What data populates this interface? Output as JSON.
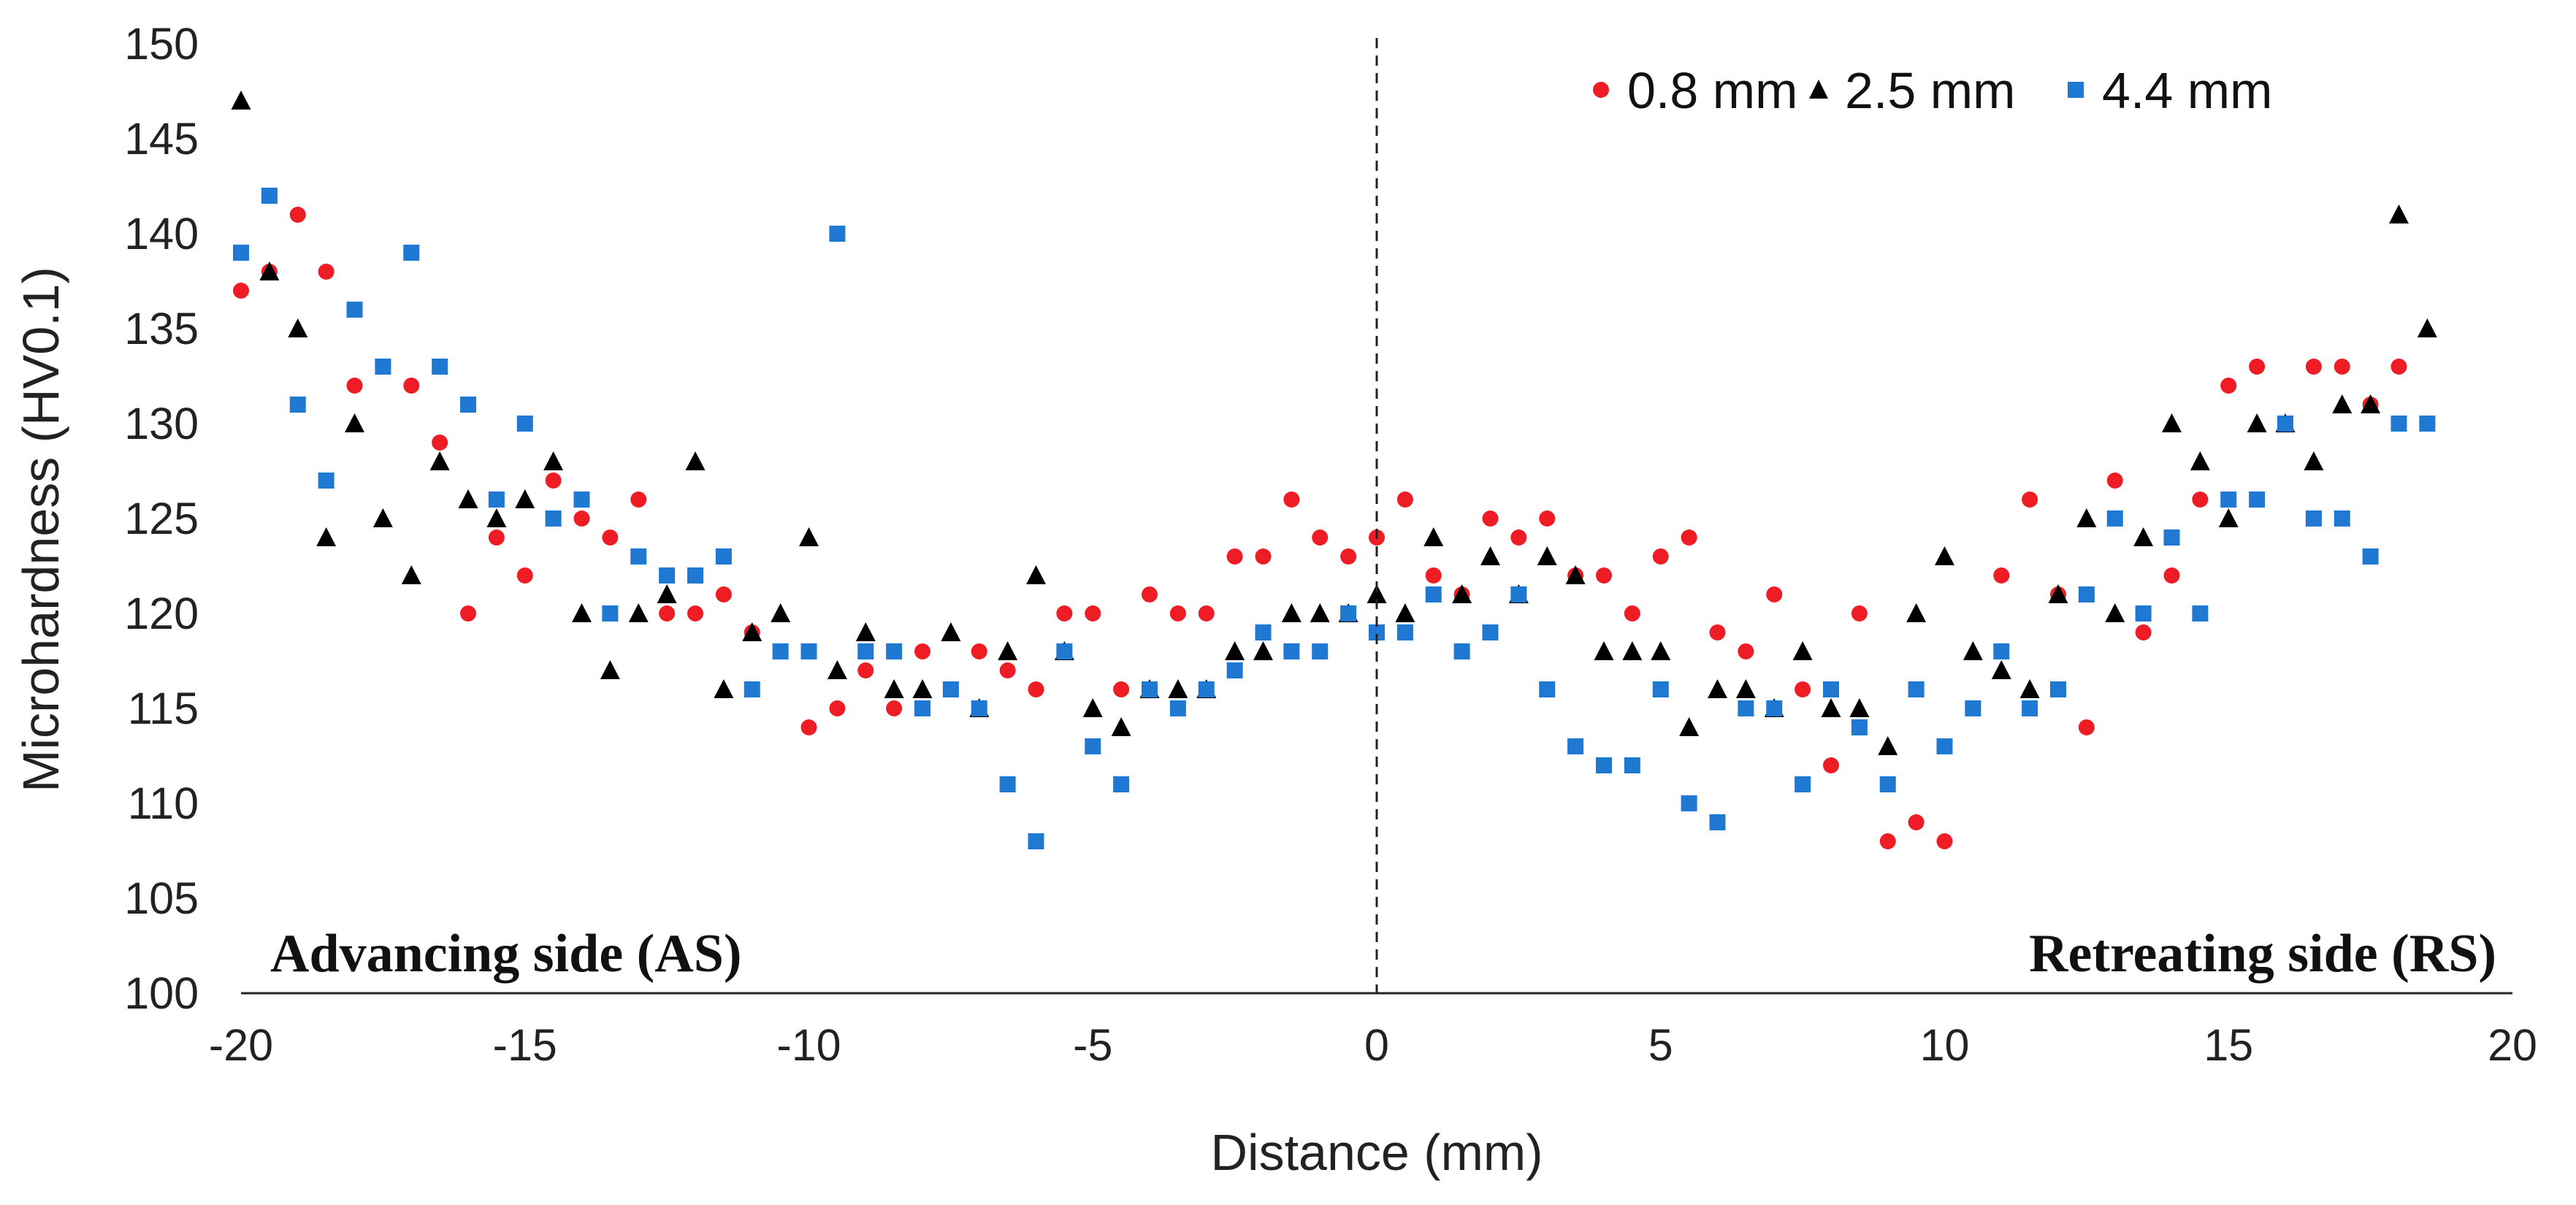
{
  "chart_data": {
    "type": "scatter",
    "xlabel": "Distance (mm)",
    "ylabel": "Microhardness (HV0.1)",
    "xlim": [
      -20,
      20
    ],
    "ylim": [
      100,
      150
    ],
    "xticks": [
      -20,
      -15,
      -10,
      -5,
      0,
      5,
      10,
      15,
      20
    ],
    "yticks": [
      100,
      105,
      110,
      115,
      120,
      125,
      130,
      135,
      140,
      145,
      150
    ],
    "grid": false,
    "legend_position": "top-right",
    "vertical_reference_line": 0,
    "annotations": {
      "left": "Advancing side (AS)",
      "right": "Retreating side (RS)"
    },
    "series": [
      {
        "name": "0.8 mm",
        "marker": "circle",
        "color": "#ee1c25",
        "points": [
          [
            -20,
            137
          ],
          [
            -19.5,
            138
          ],
          [
            -19,
            141
          ],
          [
            -18.5,
            138
          ],
          [
            -18,
            132
          ],
          [
            -17.5,
            133
          ],
          [
            -17,
            132
          ],
          [
            -16.5,
            129
          ],
          [
            -16,
            120
          ],
          [
            -15.5,
            124
          ],
          [
            -15,
            122
          ],
          [
            -14.5,
            127
          ],
          [
            -14,
            125
          ],
          [
            -13.5,
            124
          ],
          [
            -13,
            126
          ],
          [
            -12.5,
            120
          ],
          [
            -12,
            120
          ],
          [
            -11.5,
            121
          ],
          [
            -11,
            119
          ],
          [
            -10.5,
            118
          ],
          [
            -10,
            114
          ],
          [
            -9.5,
            115
          ],
          [
            -9,
            117
          ],
          [
            -8.5,
            115
          ],
          [
            -8,
            118
          ],
          [
            -7.5,
            116
          ],
          [
            -7,
            118
          ],
          [
            -6.5,
            117
          ],
          [
            -6,
            116
          ],
          [
            -5.5,
            120
          ],
          [
            -5,
            120
          ],
          [
            -4.5,
            116
          ],
          [
            -4,
            121
          ],
          [
            -3.5,
            120
          ],
          [
            -3,
            120
          ],
          [
            -2.5,
            123
          ],
          [
            -2,
            123
          ],
          [
            -1.5,
            126
          ],
          [
            -1,
            124
          ],
          [
            -0.5,
            123
          ],
          [
            0,
            124
          ],
          [
            0.5,
            126
          ],
          [
            1,
            122
          ],
          [
            1.5,
            121
          ],
          [
            2,
            125
          ],
          [
            2.5,
            124
          ],
          [
            3,
            125
          ],
          [
            3.5,
            122
          ],
          [
            4,
            122
          ],
          [
            4.5,
            120
          ],
          [
            5,
            123
          ],
          [
            5.5,
            124
          ],
          [
            6,
            119
          ],
          [
            6.5,
            118
          ],
          [
            7,
            121
          ],
          [
            7.5,
            116
          ],
          [
            8,
            112
          ],
          [
            8.5,
            120
          ],
          [
            9,
            108
          ],
          [
            9.5,
            109
          ],
          [
            10,
            108
          ],
          [
            10.5,
            115
          ],
          [
            11,
            122
          ],
          [
            11.5,
            126
          ],
          [
            12,
            121
          ],
          [
            12.5,
            114
          ],
          [
            13,
            127
          ],
          [
            13.5,
            119
          ],
          [
            14,
            122
          ],
          [
            14.5,
            126
          ],
          [
            15,
            132
          ],
          [
            15.5,
            133
          ],
          [
            16,
            130
          ],
          [
            16.5,
            133
          ],
          [
            17,
            133
          ],
          [
            17.5,
            131
          ],
          [
            18,
            133
          ],
          [
            18.5,
            130
          ]
        ]
      },
      {
        "name": "2.5 mm",
        "marker": "triangle",
        "color": "#000000",
        "points": [
          [
            -20,
            147
          ],
          [
            -19.5,
            138
          ],
          [
            -19,
            135
          ],
          [
            -18.5,
            124
          ],
          [
            -18,
            130
          ],
          [
            -17.5,
            125
          ],
          [
            -17,
            122
          ],
          [
            -16.5,
            128
          ],
          [
            -16,
            126
          ],
          [
            -15.5,
            125
          ],
          [
            -15,
            126
          ],
          [
            -14.5,
            128
          ],
          [
            -14,
            120
          ],
          [
            -13.5,
            117
          ],
          [
            -13,
            120
          ],
          [
            -12.5,
            121
          ],
          [
            -12,
            128
          ],
          [
            -11.5,
            116
          ],
          [
            -11,
            119
          ],
          [
            -10.5,
            120
          ],
          [
            -10,
            124
          ],
          [
            -9.5,
            117
          ],
          [
            -9,
            119
          ],
          [
            -8.5,
            116
          ],
          [
            -8,
            116
          ],
          [
            -7.5,
            119
          ],
          [
            -7,
            115
          ],
          [
            -6.5,
            118
          ],
          [
            -6,
            122
          ],
          [
            -5.5,
            118
          ],
          [
            -5,
            115
          ],
          [
            -4.5,
            114
          ],
          [
            -4,
            116
          ],
          [
            -3.5,
            116
          ],
          [
            -3,
            116
          ],
          [
            -2.5,
            118
          ],
          [
            -2,
            118
          ],
          [
            -1.5,
            120
          ],
          [
            -1,
            120
          ],
          [
            -0.5,
            120
          ],
          [
            0,
            121
          ],
          [
            0.5,
            120
          ],
          [
            1,
            124
          ],
          [
            1.5,
            121
          ],
          [
            2,
            123
          ],
          [
            2.5,
            121
          ],
          [
            3,
            123
          ],
          [
            3.5,
            122
          ],
          [
            4,
            118
          ],
          [
            4.5,
            118
          ],
          [
            5,
            118
          ],
          [
            5.5,
            114
          ],
          [
            6,
            116
          ],
          [
            6.5,
            116
          ],
          [
            7,
            115
          ],
          [
            7.5,
            118
          ],
          [
            8,
            115
          ],
          [
            8.5,
            115
          ],
          [
            9,
            113
          ],
          [
            9.5,
            120
          ],
          [
            10,
            123
          ],
          [
            10.5,
            118
          ],
          [
            11,
            117
          ],
          [
            11.5,
            116
          ],
          [
            12,
            121
          ],
          [
            12.5,
            125
          ],
          [
            13,
            120
          ],
          [
            13.5,
            124
          ],
          [
            14,
            130
          ],
          [
            14.5,
            128
          ],
          [
            15,
            125
          ],
          [
            15.5,
            130
          ],
          [
            16,
            130
          ],
          [
            16.5,
            128
          ],
          [
            17,
            131
          ],
          [
            17.5,
            131
          ],
          [
            18,
            141
          ],
          [
            18.5,
            135
          ]
        ]
      },
      {
        "name": "4.4 mm",
        "marker": "square",
        "color": "#1f78d1",
        "points": [
          [
            -20,
            139
          ],
          [
            -19.5,
            142
          ],
          [
            -19,
            131
          ],
          [
            -18.5,
            127
          ],
          [
            -18,
            136
          ],
          [
            -17.5,
            133
          ],
          [
            -17,
            139
          ],
          [
            -16.5,
            133
          ],
          [
            -16,
            131
          ],
          [
            -15.5,
            126
          ],
          [
            -15,
            130
          ],
          [
            -14.5,
            125
          ],
          [
            -14,
            126
          ],
          [
            -13.5,
            120
          ],
          [
            -13,
            123
          ],
          [
            -12.5,
            122
          ],
          [
            -12,
            122
          ],
          [
            -11.5,
            123
          ],
          [
            -11,
            116
          ],
          [
            -10.5,
            118
          ],
          [
            -10,
            118
          ],
          [
            -9.5,
            140
          ],
          [
            -9,
            118
          ],
          [
            -8.5,
            118
          ],
          [
            -8,
            115
          ],
          [
            -7.5,
            116
          ],
          [
            -7,
            115
          ],
          [
            -6.5,
            111
          ],
          [
            -6,
            108
          ],
          [
            -5.5,
            118
          ],
          [
            -5,
            113
          ],
          [
            -4.5,
            111
          ],
          [
            -4,
            116
          ],
          [
            -3.5,
            115
          ],
          [
            -3,
            116
          ],
          [
            -2.5,
            117
          ],
          [
            -2,
            119
          ],
          [
            -1.5,
            118
          ],
          [
            -1,
            118
          ],
          [
            -0.5,
            120
          ],
          [
            0,
            119
          ],
          [
            0.5,
            119
          ],
          [
            1,
            121
          ],
          [
            1.5,
            118
          ],
          [
            2,
            119
          ],
          [
            2.5,
            121
          ],
          [
            3,
            116
          ],
          [
            3.5,
            113
          ],
          [
            4,
            112
          ],
          [
            4.5,
            112
          ],
          [
            5,
            116
          ],
          [
            5.5,
            110
          ],
          [
            6,
            109
          ],
          [
            6.5,
            115
          ],
          [
            7,
            115
          ],
          [
            7.5,
            111
          ],
          [
            8,
            116
          ],
          [
            8.5,
            114
          ],
          [
            9,
            111
          ],
          [
            9.5,
            116
          ],
          [
            10,
            113
          ],
          [
            10.5,
            115
          ],
          [
            11,
            118
          ],
          [
            11.5,
            115
          ],
          [
            12,
            116
          ],
          [
            12.5,
            121
          ],
          [
            13,
            125
          ],
          [
            13.5,
            120
          ],
          [
            14,
            124
          ],
          [
            14.5,
            120
          ],
          [
            15,
            126
          ],
          [
            15.5,
            126
          ],
          [
            16,
            130
          ],
          [
            16.5,
            125
          ],
          [
            17,
            125
          ],
          [
            17.5,
            123
          ],
          [
            18,
            130
          ],
          [
            18.5,
            130
          ]
        ]
      }
    ]
  }
}
